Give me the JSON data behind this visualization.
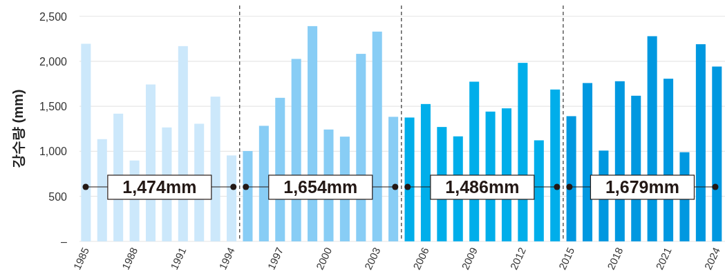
{
  "chart_data": {
    "type": "bar",
    "ylabel": "강수량 (mm)",
    "x": [
      1985,
      1986,
      1987,
      1988,
      1989,
      1990,
      1991,
      1992,
      1993,
      1994,
      1995,
      1996,
      1997,
      1998,
      1999,
      2000,
      2001,
      2002,
      2003,
      2004,
      2005,
      2006,
      2007,
      2008,
      2009,
      2010,
      2011,
      2012,
      2013,
      2014,
      2015,
      2016,
      2017,
      2018,
      2019,
      2020,
      2021,
      2022,
      2023,
      2024
    ],
    "values": [
      2194,
      1135,
      1418,
      898,
      1742,
      1265,
      2168,
      1306,
      1607,
      954,
      1003,
      1283,
      1594,
      2026,
      2390,
      1242,
      1163,
      2082,
      2329,
      1383,
      1375,
      1525,
      1270,
      1166,
      1773,
      1441,
      1477,
      1982,
      1122,
      1686,
      1390,
      1758,
      1008,
      1778,
      1617,
      2278,
      1806,
      990,
      2189,
      1941
    ],
    "colors": [
      "#cce8fb",
      "#cce8fb",
      "#cce8fb",
      "#cce8fb",
      "#cce8fb",
      "#cce8fb",
      "#cce8fb",
      "#cce8fb",
      "#cce8fb",
      "#cce8fb",
      "#88cdf5",
      "#88cdf5",
      "#88cdf5",
      "#88cdf5",
      "#88cdf5",
      "#88cdf5",
      "#88cdf5",
      "#88cdf5",
      "#88cdf5",
      "#88cdf5",
      "#00aeea",
      "#00aeea",
      "#00aeea",
      "#00aeea",
      "#00aeea",
      "#00aeea",
      "#00aeea",
      "#00aeea",
      "#00aeea",
      "#00aeea",
      "#0098e0",
      "#0098e0",
      "#0098e0",
      "#0098e0",
      "#0098e0",
      "#0098e0",
      "#0098e0",
      "#0098e0",
      "#0098e0",
      "#0098e0"
    ],
    "xlim": [
      1984.6,
      2024.5
    ],
    "xticks": [
      1985,
      1988,
      1991,
      1994,
      1997,
      2000,
      2003,
      2006,
      2009,
      2012,
      2015,
      2018,
      2021,
      2024
    ],
    "ylim": [
      0,
      2500
    ],
    "yticks": [
      {
        "value": 0,
        "label": "–"
      },
      500,
      {
        "value": 1000,
        "label": "1,000"
      },
      {
        "value": 1500,
        "label": "1,500"
      },
      {
        "value": 2000,
        "label": "2,000"
      },
      {
        "value": 2500,
        "label": "2,500"
      }
    ],
    "grid": "y",
    "ref_lines": [
      {
        "axis": "x",
        "value": 1994.5,
        "line_style": "dashed",
        "color": "#333333"
      },
      {
        "axis": "x",
        "value": 2004.5,
        "line_style": "dashed",
        "color": "#333333"
      },
      {
        "axis": "x",
        "value": 2014.5,
        "line_style": "dashed",
        "color": "#333333"
      }
    ],
    "annotations": [
      "1,474mm",
      "1,654mm",
      "1,486mm",
      "1,679mm"
    ]
  }
}
